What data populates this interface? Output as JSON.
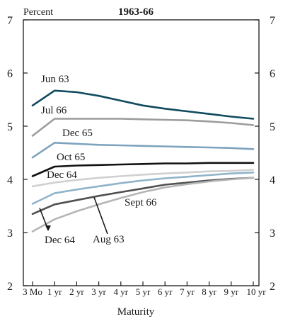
{
  "chart_data": {
    "type": "line",
    "title": "1963-66",
    "ylabel": "Percent",
    "xlabel": "Maturity",
    "ylim": [
      2,
      7
    ],
    "yticks": [
      2,
      3,
      4,
      5,
      6,
      7
    ],
    "categories": [
      "3 Mo",
      "1 yr",
      "2 yr",
      "3 yr",
      "4 yr",
      "5 yr",
      "6 yr",
      "7 yr",
      "8 yr",
      "9 yr",
      "10 yr"
    ],
    "grid": false,
    "series": [
      {
        "name": "Jun 63",
        "color": "#0f4a5e",
        "width": 2.6,
        "values": [
          5.39,
          5.67,
          5.64,
          5.57,
          5.48,
          5.39,
          5.33,
          5.28,
          5.23,
          5.18,
          5.14
        ]
      },
      {
        "name": "Jul 66",
        "color": "#9c9c9c",
        "width": 2.6,
        "values": [
          4.82,
          5.14,
          5.14,
          5.14,
          5.14,
          5.13,
          5.12,
          5.11,
          5.09,
          5.06,
          5.02
        ]
      },
      {
        "name": "Dec 65",
        "color": "#7ea3bd",
        "width": 2.6,
        "values": [
          4.41,
          4.69,
          4.67,
          4.65,
          4.64,
          4.63,
          4.62,
          4.61,
          4.6,
          4.59,
          4.57
        ]
      },
      {
        "name": "Oct 65",
        "color": "#111111",
        "width": 2.6,
        "values": [
          4.06,
          4.24,
          4.26,
          4.27,
          4.28,
          4.29,
          4.3,
          4.3,
          4.31,
          4.31,
          4.31
        ]
      },
      {
        "name": "Dec 64",
        "color": "#d0d0d0",
        "width": 2.6,
        "values": [
          3.87,
          3.94,
          3.99,
          4.03,
          4.06,
          4.09,
          4.11,
          4.13,
          4.15,
          4.16,
          4.18
        ]
      },
      {
        "name": "Dec 64",
        "color": "#8fb3c9",
        "width": 2.6,
        "values": [
          3.54,
          3.74,
          3.81,
          3.87,
          3.93,
          3.98,
          4.02,
          4.05,
          4.08,
          4.11,
          4.13
        ]
      },
      {
        "name": "Sept 66",
        "color": "#505050",
        "width": 2.6,
        "values": [
          3.35,
          3.53,
          3.61,
          3.69,
          3.76,
          3.83,
          3.9,
          3.94,
          3.98,
          4.01,
          4.03
        ]
      },
      {
        "name": "Aug 63",
        "color": "#b5b5b5",
        "width": 2.6,
        "values": [
          3.02,
          3.25,
          3.4,
          3.53,
          3.65,
          3.76,
          3.85,
          3.91,
          3.96,
          4.0,
          4.03
        ]
      }
    ],
    "labels": [
      {
        "text": "Jun 63"
      },
      {
        "text": "Jul 66"
      },
      {
        "text": "Dec 65"
      },
      {
        "text": "Oct 65"
      },
      {
        "text": "Dec 64"
      },
      {
        "text": "Sept 66"
      },
      {
        "text": "Dec 64"
      },
      {
        "text": "Aug 63"
      }
    ]
  }
}
